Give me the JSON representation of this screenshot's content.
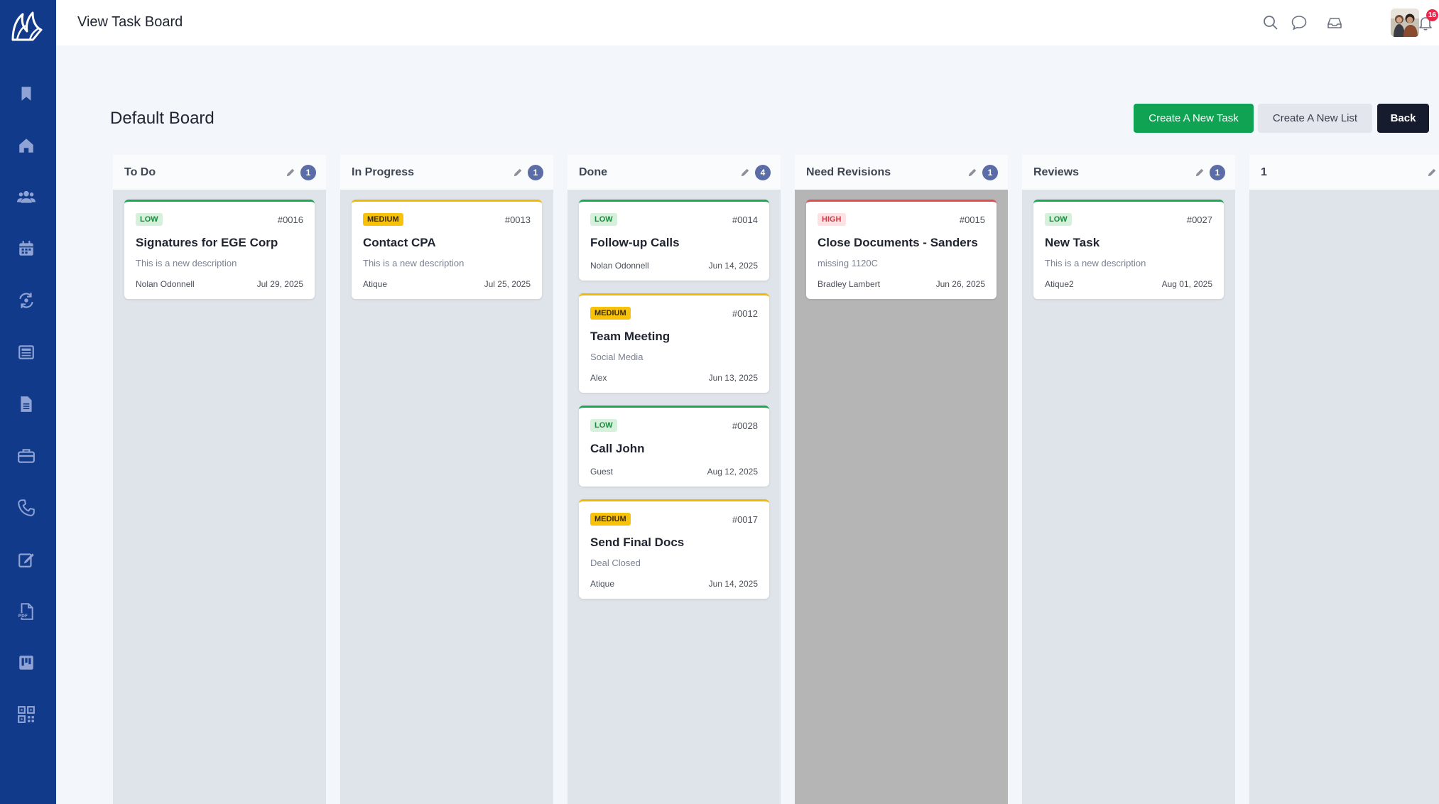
{
  "header": {
    "title": "View Task Board",
    "notifications_count": "16"
  },
  "sidebar": {
    "items": [
      {
        "name": "bookmark-icon"
      },
      {
        "name": "home-icon"
      },
      {
        "name": "users-icon"
      },
      {
        "name": "calendar-icon"
      },
      {
        "name": "exchange-icon"
      },
      {
        "name": "newspaper-icon"
      },
      {
        "name": "document-icon"
      },
      {
        "name": "briefcase-icon"
      },
      {
        "name": "phone-icon"
      },
      {
        "name": "edit-icon"
      },
      {
        "name": "pdf-icon"
      },
      {
        "name": "board-icon"
      },
      {
        "name": "qr-code-icon"
      }
    ]
  },
  "board": {
    "title": "Default Board",
    "buttons": {
      "create_task": "Create A New Task",
      "create_list": "Create A New List",
      "back": "Back"
    },
    "columns": [
      {
        "title": "To Do",
        "count": "1",
        "cards": [
          {
            "priority": "Low",
            "id": "#0016",
            "title": "Signatures for EGE Corp",
            "description": "This is a new description",
            "assignee": "Nolan Odonnell",
            "date": "Jul 29, 2025"
          }
        ]
      },
      {
        "title": "In Progress",
        "count": "1",
        "cards": [
          {
            "priority": "Medium",
            "id": "#0013",
            "title": "Contact CPA",
            "description": "This is a new description",
            "assignee": "Atique",
            "date": "Jul 25, 2025"
          }
        ]
      },
      {
        "title": "Done",
        "count": "4",
        "cards": [
          {
            "priority": "Low",
            "id": "#0014",
            "title": "Follow-up Calls",
            "description": "",
            "assignee": "Nolan Odonnell",
            "date": "Jun 14, 2025"
          },
          {
            "priority": "Medium",
            "id": "#0012",
            "title": "Team Meeting",
            "description": "Social Media",
            "assignee": "Alex",
            "date": "Jun 13, 2025"
          },
          {
            "priority": "Low",
            "id": "#0028",
            "title": "Call John",
            "description": "",
            "assignee": "Guest",
            "date": "Aug 12, 2025"
          },
          {
            "priority": "Medium",
            "id": "#0017",
            "title": "Send Final Docs",
            "description": "Deal Closed",
            "assignee": "Atique",
            "date": "Jun 14, 2025"
          }
        ]
      },
      {
        "title": "Need Revisions",
        "count": "1",
        "cards": [
          {
            "priority": "High",
            "id": "#0015",
            "title": "Close Documents - Sanders",
            "description": "missing 1120C",
            "assignee": "Bradley Lambert",
            "date": "Jun 26, 2025"
          }
        ]
      },
      {
        "title": "Reviews",
        "count": "1",
        "cards": [
          {
            "priority": "Low",
            "id": "#0027",
            "title": "New Task",
            "description": "This is a new description",
            "assignee": "Atique2",
            "date": "Aug 01, 2025"
          }
        ]
      },
      {
        "title": "1",
        "count": "",
        "cards": []
      }
    ]
  }
}
